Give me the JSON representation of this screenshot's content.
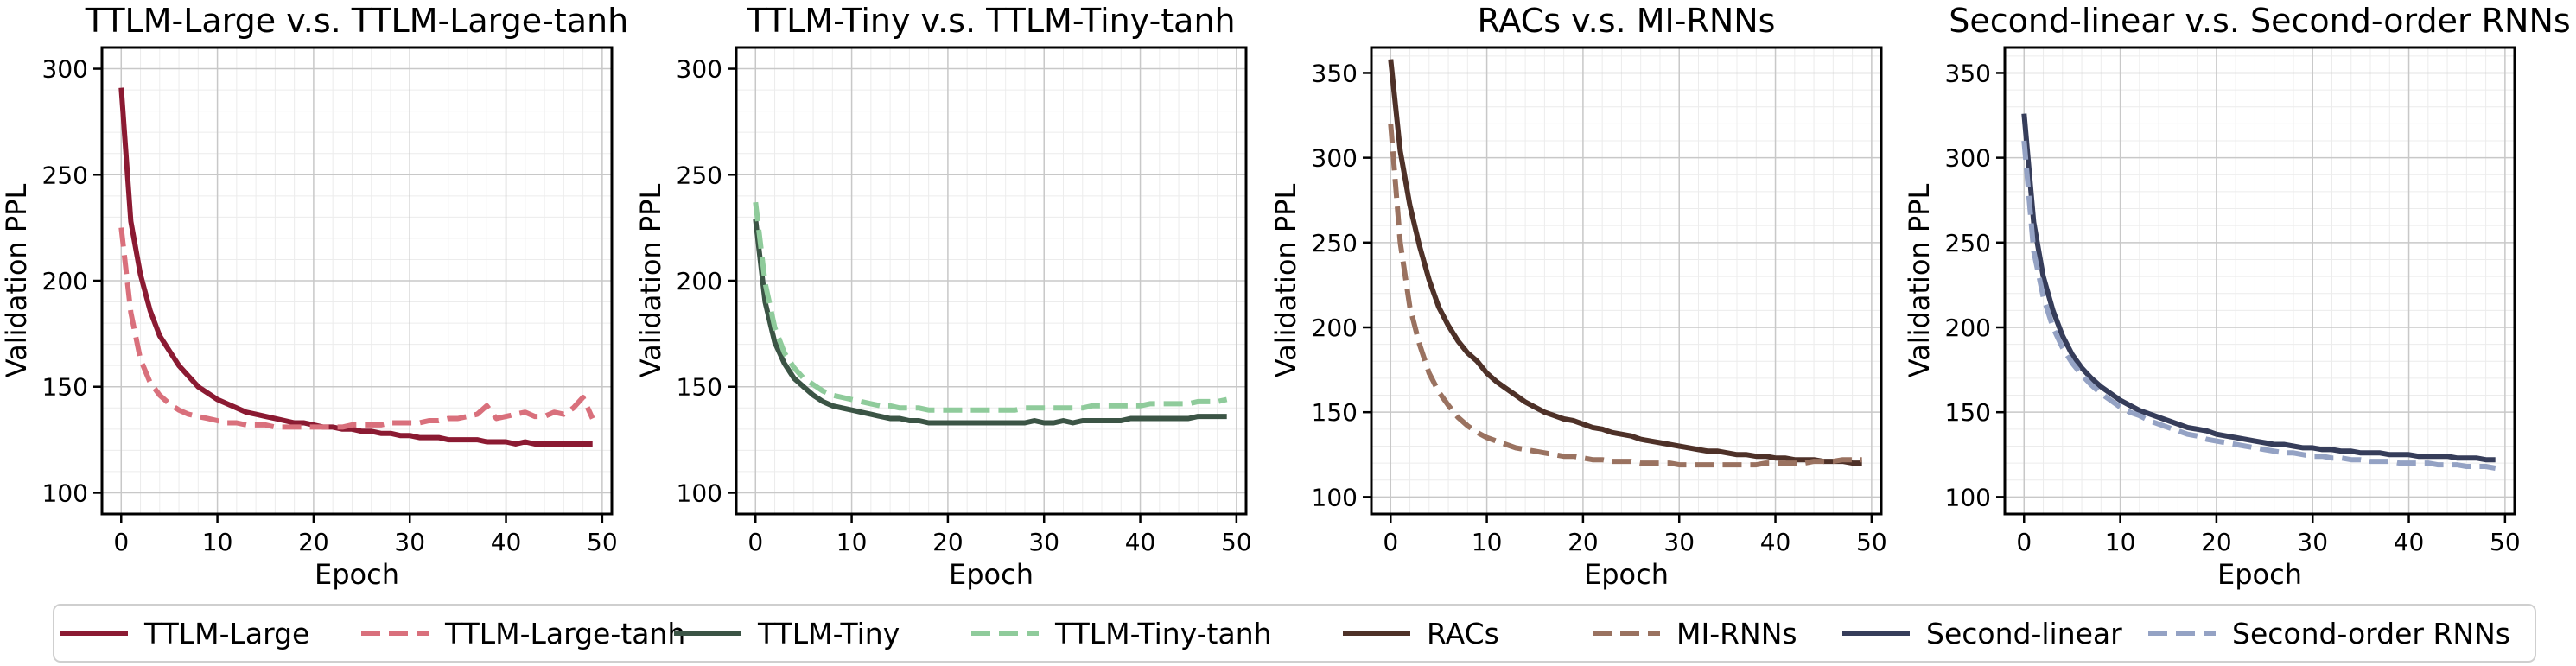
{
  "chart_data": [
    {
      "type": "line",
      "title": "TTLM-Large v.s. TTLM-Large-tanh",
      "xlabel": "Epoch",
      "ylabel": "Validation PPL",
      "xlim": [
        -2,
        51
      ],
      "ylim": [
        90,
        310
      ],
      "xticks": [
        0,
        10,
        20,
        30,
        40,
        50
      ],
      "yticks": [
        100,
        150,
        200,
        250,
        300
      ],
      "grid": true,
      "series": [
        {
          "name": "TTLM-Large",
          "color": "#8b1a32",
          "style": "solid",
          "x": [
            0,
            1,
            2,
            3,
            4,
            5,
            6,
            7,
            8,
            9,
            10,
            11,
            12,
            13,
            14,
            15,
            16,
            17,
            18,
            19,
            20,
            21,
            22,
            23,
            24,
            25,
            26,
            27,
            28,
            29,
            30,
            31,
            32,
            33,
            34,
            35,
            36,
            37,
            38,
            39,
            40,
            41,
            42,
            43,
            44,
            45,
            46,
            47,
            48,
            49
          ],
          "y": [
            291,
            228,
            203,
            186,
            174,
            167,
            160,
            155,
            150,
            147,
            144,
            142,
            140,
            138,
            137,
            136,
            135,
            134,
            133,
            133,
            132,
            131,
            131,
            130,
            130,
            129,
            129,
            128,
            128,
            127,
            127,
            126,
            126,
            126,
            125,
            125,
            125,
            125,
            124,
            124,
            124,
            123,
            124,
            123,
            123,
            123,
            123,
            123,
            123,
            123
          ]
        },
        {
          "name": "TTLM-Large-tanh",
          "color": "#d9707c",
          "style": "dashed",
          "x": [
            0,
            1,
            2,
            3,
            4,
            5,
            6,
            7,
            8,
            9,
            10,
            11,
            12,
            13,
            14,
            15,
            16,
            17,
            18,
            19,
            20,
            21,
            22,
            23,
            24,
            25,
            26,
            27,
            28,
            29,
            30,
            31,
            32,
            33,
            34,
            35,
            36,
            37,
            38,
            39,
            40,
            41,
            42,
            43,
            44,
            45,
            46,
            47,
            48,
            49
          ],
          "y": [
            225,
            185,
            163,
            152,
            146,
            142,
            139,
            137,
            136,
            135,
            134,
            133,
            133,
            132,
            132,
            132,
            131,
            131,
            131,
            131,
            131,
            131,
            131,
            131,
            132,
            132,
            132,
            132,
            133,
            133,
            133,
            133,
            134,
            134,
            135,
            135,
            136,
            137,
            141,
            135,
            136,
            137,
            138,
            136,
            136,
            138,
            137,
            140,
            145,
            135
          ]
        }
      ]
    },
    {
      "type": "line",
      "title": "TTLM-Tiny v.s. TTLM-Tiny-tanh",
      "xlabel": "Epoch",
      "ylabel": "Validation PPL",
      "xlim": [
        -2,
        51
      ],
      "ylim": [
        90,
        310
      ],
      "xticks": [
        0,
        10,
        20,
        30,
        40,
        50
      ],
      "yticks": [
        100,
        150,
        200,
        250,
        300
      ],
      "grid": true,
      "series": [
        {
          "name": "TTLM-Tiny",
          "color": "#3b5445",
          "style": "solid",
          "x": [
            0,
            1,
            2,
            3,
            4,
            5,
            6,
            7,
            8,
            9,
            10,
            11,
            12,
            13,
            14,
            15,
            16,
            17,
            18,
            19,
            20,
            21,
            22,
            23,
            24,
            25,
            26,
            27,
            28,
            29,
            30,
            31,
            32,
            33,
            34,
            35,
            36,
            37,
            38,
            39,
            40,
            41,
            42,
            43,
            44,
            45,
            46,
            47,
            48,
            49
          ],
          "y": [
            229,
            190,
            171,
            161,
            154,
            150,
            146,
            143,
            141,
            140,
            139,
            138,
            137,
            136,
            135,
            135,
            134,
            134,
            133,
            133,
            133,
            133,
            133,
            133,
            133,
            133,
            133,
            133,
            133,
            134,
            133,
            133,
            134,
            133,
            134,
            134,
            134,
            134,
            134,
            135,
            135,
            135,
            135,
            135,
            135,
            135,
            136,
            136,
            136,
            136
          ]
        },
        {
          "name": "TTLM-Tiny-tanh",
          "color": "#8fcb9b",
          "style": "dashed",
          "x": [
            0,
            1,
            2,
            3,
            4,
            5,
            6,
            7,
            8,
            9,
            10,
            11,
            12,
            13,
            14,
            15,
            16,
            17,
            18,
            19,
            20,
            21,
            22,
            23,
            24,
            25,
            26,
            27,
            28,
            29,
            30,
            31,
            32,
            33,
            34,
            35,
            36,
            37,
            38,
            39,
            40,
            41,
            42,
            43,
            44,
            45,
            46,
            47,
            48,
            49
          ],
          "y": [
            237,
            199,
            178,
            166,
            159,
            154,
            151,
            148,
            146,
            145,
            144,
            143,
            142,
            141,
            141,
            140,
            140,
            140,
            139,
            139,
            139,
            139,
            139,
            139,
            139,
            139,
            139,
            139,
            140,
            140,
            140,
            140,
            140,
            140,
            140,
            141,
            141,
            141,
            141,
            141,
            141,
            142,
            142,
            142,
            142,
            142,
            143,
            143,
            143,
            144
          ]
        }
      ]
    },
    {
      "type": "line",
      "title": "RACs v.s. MI-RNNs",
      "xlabel": "Epoch",
      "ylabel": "Validation PPL",
      "xlim": [
        -2,
        51
      ],
      "ylim": [
        90,
        365
      ],
      "xticks": [
        0,
        10,
        20,
        30,
        40,
        50
      ],
      "yticks": [
        100,
        150,
        200,
        250,
        300,
        350
      ],
      "grid": true,
      "series": [
        {
          "name": "RACs",
          "color": "#4e3128",
          "style": "solid",
          "x": [
            0,
            1,
            2,
            3,
            4,
            5,
            6,
            7,
            8,
            9,
            10,
            11,
            12,
            13,
            14,
            15,
            16,
            17,
            18,
            19,
            20,
            21,
            22,
            23,
            24,
            25,
            26,
            27,
            28,
            29,
            30,
            31,
            32,
            33,
            34,
            35,
            36,
            37,
            38,
            39,
            40,
            41,
            42,
            43,
            44,
            45,
            46,
            47,
            48,
            49
          ],
          "y": [
            358,
            304,
            272,
            248,
            228,
            212,
            201,
            192,
            185,
            180,
            173,
            168,
            164,
            160,
            156,
            153,
            150,
            148,
            146,
            145,
            143,
            141,
            140,
            138,
            137,
            136,
            134,
            133,
            132,
            131,
            130,
            129,
            128,
            127,
            127,
            126,
            125,
            125,
            124,
            124,
            123,
            123,
            122,
            122,
            122,
            121,
            121,
            121,
            120,
            120
          ]
        },
        {
          "name": "MI-RNNs",
          "color": "#9a7260",
          "style": "dashed",
          "x": [
            0,
            1,
            2,
            3,
            4,
            5,
            6,
            7,
            8,
            9,
            10,
            11,
            12,
            13,
            14,
            15,
            16,
            17,
            18,
            19,
            20,
            21,
            22,
            23,
            24,
            25,
            26,
            27,
            28,
            29,
            30,
            31,
            32,
            33,
            34,
            35,
            36,
            37,
            38,
            39,
            40,
            41,
            42,
            43,
            44,
            45,
            46,
            47,
            48,
            49
          ],
          "y": [
            320,
            250,
            212,
            190,
            173,
            162,
            154,
            147,
            142,
            138,
            135,
            133,
            131,
            129,
            128,
            127,
            126,
            125,
            124,
            124,
            123,
            122,
            122,
            121,
            121,
            121,
            120,
            120,
            120,
            120,
            119,
            119,
            119,
            119,
            119,
            119,
            119,
            119,
            119,
            120,
            120,
            120,
            120,
            120,
            121,
            121,
            121,
            122,
            122,
            122
          ]
        }
      ]
    },
    {
      "type": "line",
      "title": "Second-linear v.s. Second-order RNNs",
      "xlabel": "Epoch",
      "ylabel": "Validation PPL",
      "xlim": [
        -2,
        51
      ],
      "ylim": [
        90,
        365
      ],
      "xticks": [
        0,
        10,
        20,
        30,
        40,
        50
      ],
      "yticks": [
        100,
        150,
        200,
        250,
        300,
        350
      ],
      "grid": true,
      "series": [
        {
          "name": "Second-linear",
          "color": "#363d5a",
          "style": "solid",
          "x": [
            0,
            1,
            2,
            3,
            4,
            5,
            6,
            7,
            8,
            9,
            10,
            11,
            12,
            13,
            14,
            15,
            16,
            17,
            18,
            19,
            20,
            21,
            22,
            23,
            24,
            25,
            26,
            27,
            28,
            29,
            30,
            31,
            32,
            33,
            34,
            35,
            36,
            37,
            38,
            39,
            40,
            41,
            42,
            43,
            44,
            45,
            46,
            47,
            48,
            49
          ],
          "y": [
            326,
            262,
            230,
            210,
            195,
            184,
            176,
            170,
            165,
            161,
            157,
            154,
            151,
            149,
            147,
            145,
            143,
            141,
            140,
            139,
            137,
            136,
            135,
            134,
            133,
            132,
            131,
            131,
            130,
            129,
            129,
            128,
            128,
            127,
            127,
            126,
            126,
            126,
            125,
            125,
            125,
            124,
            124,
            124,
            124,
            123,
            123,
            123,
            122,
            122
          ]
        },
        {
          "name": "Second-order RNNs",
          "color": "#94a2c4",
          "style": "dashed",
          "x": [
            0,
            1,
            2,
            3,
            4,
            5,
            6,
            7,
            8,
            9,
            10,
            11,
            12,
            13,
            14,
            15,
            16,
            17,
            18,
            19,
            20,
            21,
            22,
            23,
            24,
            25,
            26,
            27,
            28,
            29,
            30,
            31,
            32,
            33,
            34,
            35,
            36,
            37,
            38,
            39,
            40,
            41,
            42,
            43,
            44,
            45,
            46,
            47,
            48,
            49
          ],
          "y": [
            310,
            245,
            218,
            200,
            188,
            179,
            172,
            166,
            161,
            157,
            153,
            150,
            148,
            145,
            143,
            141,
            139,
            137,
            136,
            134,
            133,
            132,
            131,
            130,
            129,
            128,
            127,
            126,
            126,
            125,
            124,
            124,
            123,
            123,
            122,
            122,
            121,
            121,
            121,
            120,
            120,
            120,
            120,
            119,
            119,
            119,
            118,
            118,
            118,
            117
          ]
        }
      ]
    }
  ],
  "legend": {
    "placement": "bottom",
    "items": [
      {
        "label": "TTLM-Large",
        "color": "#8b1a32",
        "style": "solid"
      },
      {
        "label": "TTLM-Large-tanh",
        "color": "#d9707c",
        "style": "dashed"
      },
      {
        "label": "TTLM-Tiny",
        "color": "#3b5445",
        "style": "solid"
      },
      {
        "label": "TTLM-Tiny-tanh",
        "color": "#8fcb9b",
        "style": "dashed"
      },
      {
        "label": "RACs",
        "color": "#4e3128",
        "style": "solid"
      },
      {
        "label": "MI-RNNs",
        "color": "#9a7260",
        "style": "dashed"
      },
      {
        "label": "Second-linear",
        "color": "#363d5a",
        "style": "solid"
      },
      {
        "label": "Second-order RNNs",
        "color": "#94a2c4",
        "style": "dashed"
      }
    ]
  }
}
